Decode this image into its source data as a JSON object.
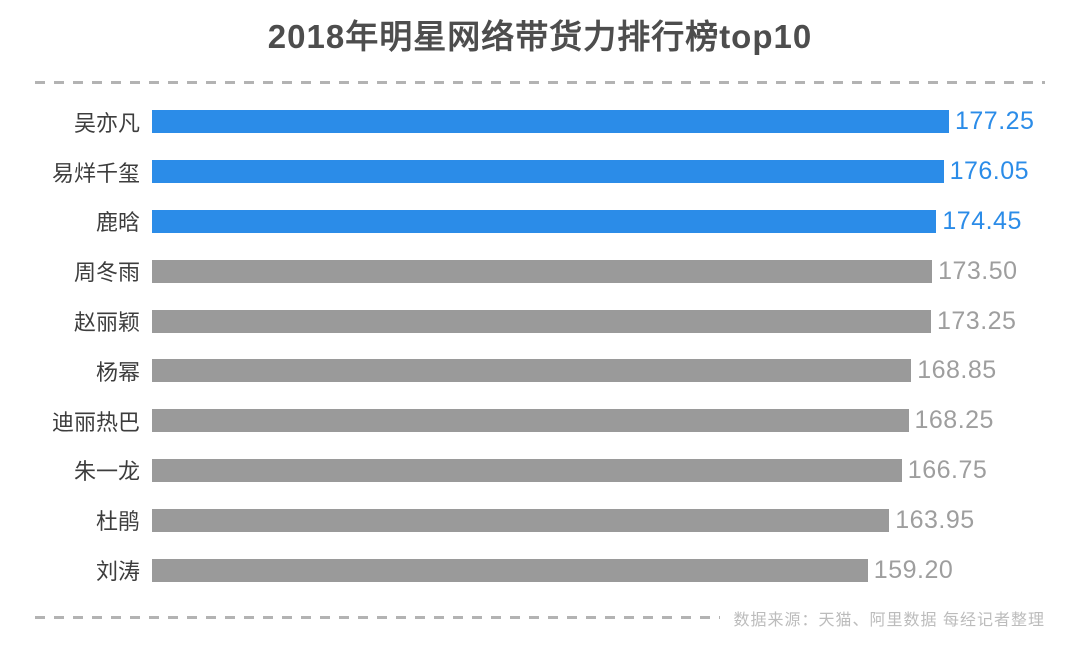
{
  "title": "2018年明星网络带货力排行榜top10",
  "source_note": "数据来源：天猫、阿里数据 每经记者整理",
  "colors": {
    "bar_highlight": "#2b8ce8",
    "bar_normal": "#9a9a9a",
    "value_highlight": "#2b8ce8",
    "value_normal": "#9e9e9e",
    "title_text": "#4d4d4d",
    "label_text": "#3d3d3d",
    "dash": "#b3b3b3",
    "source_text": "#bcbcbc"
  },
  "chart_data": {
    "type": "bar",
    "orientation": "horizontal",
    "title": "2018年明星网络带货力排行榜top10",
    "categories": [
      "吴亦凡",
      "易烊千玺",
      "鹿晗",
      "周冬雨",
      "赵丽颖",
      "杨幂",
      "迪丽热巴",
      "朱一龙",
      "杜鹃",
      "刘涛"
    ],
    "values": [
      177.25,
      176.05,
      174.45,
      173.5,
      173.25,
      168.85,
      168.25,
      166.75,
      163.95,
      159.2
    ],
    "value_labels": [
      "177.25",
      "176.05",
      "174.45",
      "173.50",
      "173.25",
      "168.85",
      "168.25",
      "166.75",
      "163.95",
      "159.20"
    ],
    "highlighted_count": 3,
    "xlim": [
      0,
      180
    ],
    "grid": false,
    "legend": false,
    "value_label_position": "right-of-bar"
  }
}
